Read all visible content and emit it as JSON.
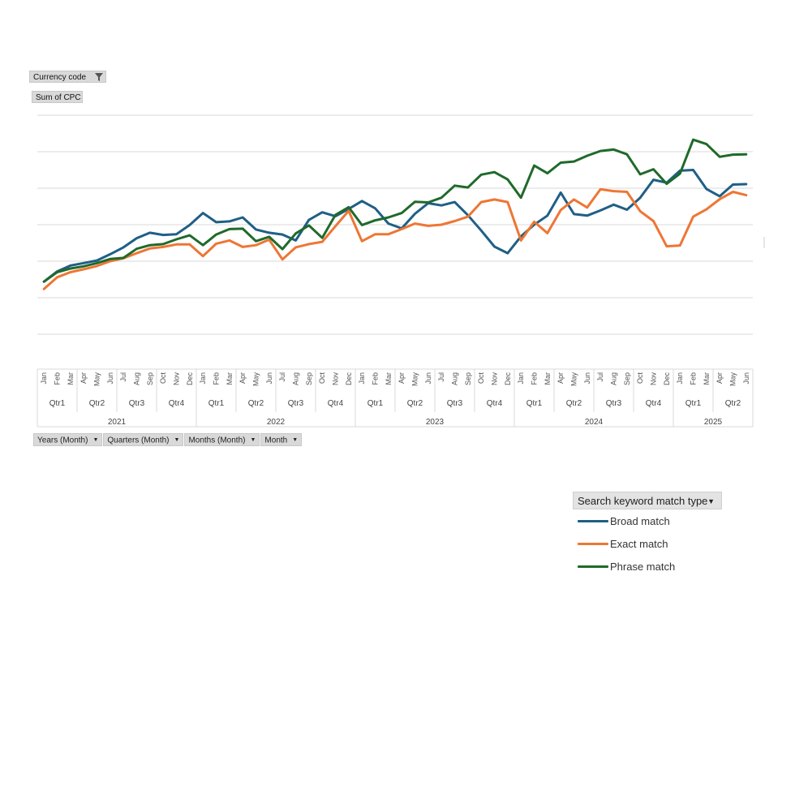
{
  "filters": {
    "currency_code": "Currency code",
    "values_field": "Sum of CPC"
  },
  "axis_fields": [
    "Years (Month)",
    "Quarters (Month)",
    "Months (Month)",
    "Month"
  ],
  "legend": {
    "title": "Search keyword match type",
    "items": [
      {
        "label": "Broad match",
        "color": "#1f5f86"
      },
      {
        "label": "Exact match",
        "color": "#ee7634"
      },
      {
        "label": "Phrase match",
        "color": "#1f6a2a"
      }
    ]
  },
  "chart_data": {
    "type": "line",
    "title": "",
    "xlabel": "",
    "ylabel": "",
    "grid": true,
    "legend_position": "bottom-right",
    "gridline_count": 7,
    "y_axis_labels_shown": false,
    "months": [
      "Jan",
      "Feb",
      "Mar",
      "Apr",
      "May",
      "Jun",
      "Jul",
      "Aug",
      "Sep",
      "Oct",
      "Nov",
      "Dec",
      "Jan",
      "Feb",
      "Mar",
      "Apr",
      "May",
      "Jun",
      "Jul",
      "Aug",
      "Sep",
      "Oct",
      "Nov",
      "Dec",
      "Jan",
      "Feb",
      "Mar",
      "Apr",
      "May",
      "Jun",
      "Jul",
      "Aug",
      "Sep",
      "Oct",
      "Nov",
      "Dec",
      "Jan",
      "Feb",
      "Mar",
      "Apr",
      "May",
      "Jun",
      "Jul",
      "Aug",
      "Sep",
      "Oct",
      "Nov",
      "Dec",
      "Jan",
      "Feb",
      "Mar",
      "Apr",
      "May",
      "Jun"
    ],
    "quarters": [
      {
        "label": "Qtr1",
        "count": 3
      },
      {
        "label": "Qtr2",
        "count": 3
      },
      {
        "label": "Qtr3",
        "count": 3
      },
      {
        "label": "Qtr4",
        "count": 3
      },
      {
        "label": "Qtr1",
        "count": 3
      },
      {
        "label": "Qtr2",
        "count": 3
      },
      {
        "label": "Qtr3",
        "count": 3
      },
      {
        "label": "Qtr4",
        "count": 3
      },
      {
        "label": "Qtr1",
        "count": 3
      },
      {
        "label": "Qtr2",
        "count": 3
      },
      {
        "label": "Qtr3",
        "count": 3
      },
      {
        "label": "Qtr4",
        "count": 3
      },
      {
        "label": "Qtr1",
        "count": 3
      },
      {
        "label": "Qtr2",
        "count": 3
      },
      {
        "label": "Qtr3",
        "count": 3
      },
      {
        "label": "Qtr4",
        "count": 3
      },
      {
        "label": "Qtr1",
        "count": 3
      },
      {
        "label": "Qtr2",
        "count": 3
      }
    ],
    "years": [
      {
        "label": "2021",
        "count": 12
      },
      {
        "label": "2022",
        "count": 12
      },
      {
        "label": "2023",
        "count": 12
      },
      {
        "label": "2024",
        "count": 12
      },
      {
        "label": "2025",
        "count": 6
      }
    ],
    "ylim": [
      0,
      6
    ],
    "series": [
      {
        "name": "Broad match",
        "color": "#1f5f86",
        "values": [
          1.44,
          1.72,
          1.88,
          1.95,
          2.02,
          2.19,
          2.38,
          2.63,
          2.78,
          2.72,
          2.74,
          2.99,
          3.32,
          3.07,
          3.09,
          3.2,
          2.87,
          2.78,
          2.73,
          2.57,
          3.13,
          3.34,
          3.23,
          3.43,
          3.65,
          3.45,
          3.03,
          2.9,
          3.3,
          3.59,
          3.53,
          3.62,
          3.26,
          2.84,
          2.4,
          2.22,
          2.68,
          3.0,
          3.25,
          3.88,
          3.29,
          3.25,
          3.39,
          3.55,
          3.41,
          3.74,
          4.23,
          4.15,
          4.48,
          4.5,
          3.98,
          3.78,
          4.1,
          4.11
        ]
      },
      {
        "name": "Exact match",
        "color": "#ee7634",
        "values": [
          1.24,
          1.56,
          1.7,
          1.78,
          1.87,
          2.0,
          2.08,
          2.22,
          2.35,
          2.39,
          2.46,
          2.46,
          2.14,
          2.48,
          2.57,
          2.39,
          2.44,
          2.59,
          2.05,
          2.38,
          2.47,
          2.53,
          2.96,
          3.38,
          2.55,
          2.74,
          2.74,
          2.88,
          3.03,
          2.97,
          3.0,
          3.1,
          3.22,
          3.62,
          3.69,
          3.62,
          2.57,
          3.08,
          2.77,
          3.4,
          3.69,
          3.47,
          3.97,
          3.92,
          3.9,
          3.37,
          3.1,
          2.41,
          2.43,
          3.22,
          3.42,
          3.7,
          3.9,
          3.81
        ]
      },
      {
        "name": "Phrase match",
        "color": "#1f6a2a",
        "values": [
          1.44,
          1.7,
          1.8,
          1.86,
          1.95,
          2.06,
          2.09,
          2.34,
          2.44,
          2.47,
          2.6,
          2.71,
          2.44,
          2.73,
          2.88,
          2.89,
          2.55,
          2.67,
          2.33,
          2.76,
          2.98,
          2.64,
          3.27,
          3.48,
          2.99,
          3.12,
          3.2,
          3.32,
          3.63,
          3.61,
          3.74,
          4.07,
          4.02,
          4.37,
          4.44,
          4.24,
          3.74,
          4.62,
          4.41,
          4.7,
          4.73,
          4.89,
          5.02,
          5.06,
          4.93,
          4.38,
          4.52,
          4.12,
          4.4,
          5.33,
          5.21,
          4.86,
          4.92,
          4.93
        ]
      }
    ]
  }
}
